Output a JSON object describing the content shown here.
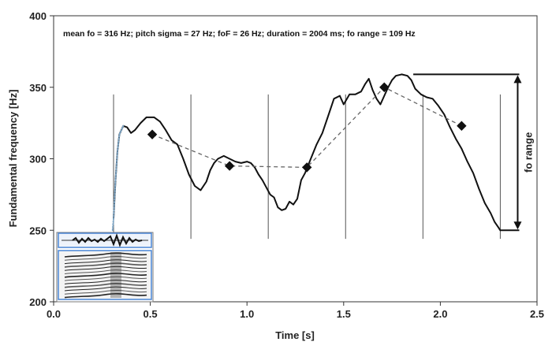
{
  "chart_data": {
    "type": "line",
    "title": "",
    "annotation": "mean fo = 316 Hz; pitch sigma = 27 Hz; foF = 26 Hz; duration = 2004 ms; fo range = 109 Hz",
    "xlabel": "Time [s]",
    "ylabel": "Fundamental frequency [Hz]",
    "xlim": [
      0,
      2.5
    ],
    "ylim": [
      200,
      400
    ],
    "xticks": [
      0.0,
      0.5,
      1.0,
      1.5,
      2.0,
      2.5
    ],
    "xtick_labels": [
      "0.0",
      "0.5",
      "1.0",
      "1.5",
      "2.0",
      "2.5"
    ],
    "yticks": [
      200,
      250,
      300,
      350,
      400
    ],
    "ytick_labels": [
      "200",
      "250",
      "300",
      "350",
      "400"
    ],
    "grid": false,
    "legend": "none",
    "segment_boundaries_s": [
      0.31,
      0.71,
      1.11,
      1.51,
      1.91,
      2.31
    ],
    "range_bracket": {
      "x": 2.4,
      "y_min": 250,
      "y_max": 359,
      "label": "fo range"
    },
    "series": [
      {
        "style": "solid",
        "color": "#111111",
        "x": [
          0.31,
          0.32,
          0.33,
          0.34,
          0.36,
          0.38,
          0.4,
          0.42,
          0.45,
          0.48,
          0.52,
          0.55,
          0.58,
          0.61,
          0.64,
          0.67,
          0.7,
          0.73,
          0.76,
          0.79,
          0.81,
          0.83,
          0.85,
          0.88,
          0.91,
          0.94,
          0.97,
          1.0,
          1.02,
          1.04,
          1.06,
          1.08,
          1.1,
          1.12,
          1.14,
          1.16,
          1.18,
          1.2,
          1.22,
          1.24,
          1.26,
          1.28,
          1.3,
          1.33,
          1.36,
          1.39,
          1.42,
          1.45,
          1.48,
          1.5,
          1.53,
          1.56,
          1.59,
          1.61,
          1.63,
          1.65,
          1.67,
          1.69,
          1.71,
          1.73,
          1.75,
          1.77,
          1.8,
          1.83,
          1.85,
          1.87,
          1.9,
          1.93,
          1.96,
          1.99,
          2.02,
          2.05,
          2.08,
          2.11,
          2.14,
          2.17,
          2.2,
          2.23,
          2.26,
          2.28,
          2.3,
          2.31
        ],
        "y": [
          258,
          285,
          305,
          317,
          323,
          322,
          318,
          320,
          325,
          329,
          329,
          326,
          320,
          313,
          310,
          300,
          289,
          281,
          278,
          284,
          292,
          297,
          300,
          302,
          300,
          298,
          297,
          298,
          297,
          294,
          289,
          285,
          280,
          275,
          273,
          266,
          264,
          265,
          270,
          268,
          272,
          285,
          290,
          300,
          310,
          318,
          330,
          342,
          344,
          338,
          345,
          345,
          347,
          352,
          356,
          348,
          342,
          338,
          344,
          350,
          355,
          358,
          359,
          358,
          355,
          349,
          345,
          343,
          342,
          337,
          331,
          322,
          314,
          307,
          298,
          290,
          279,
          269,
          262,
          256,
          252,
          250
        ]
      },
      {
        "style": "dotted",
        "color": "#7fa7c7",
        "x": [
          0.305,
          0.31,
          0.315,
          0.32,
          0.33,
          0.34,
          0.36
        ],
        "y": [
          250,
          258,
          272,
          285,
          305,
          317,
          323
        ]
      }
    ],
    "markers": {
      "style": "dashed-line-with-diamonds",
      "x": [
        0.51,
        0.91,
        1.31,
        1.71,
        2.11
      ],
      "y": [
        317,
        295,
        294,
        350,
        323
      ]
    }
  },
  "inset": {
    "description": "spectrogram thumbnail"
  }
}
